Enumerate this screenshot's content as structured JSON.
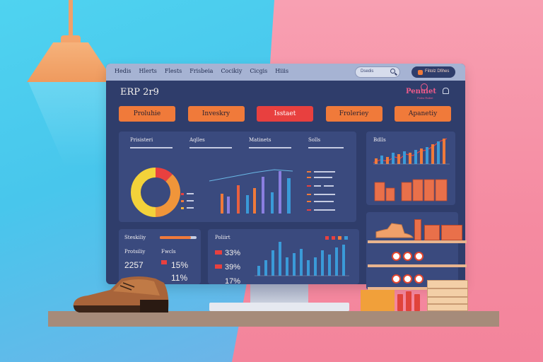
{
  "window": {
    "menu": [
      "Hedis",
      "Hlerts",
      "Flests",
      "Frisbeia",
      "Cocikiy",
      "Cicgis",
      "Hiiis"
    ],
    "search_placeholder": "Dsedis",
    "user_label": "Fiitolz Dfihes",
    "app_title": "ERP 2r9",
    "brand": "Penuiet",
    "brand_sub": "Poliro Ruiliet"
  },
  "tabs": [
    {
      "label": "Proluhie",
      "active": false
    },
    {
      "label": "Inveskry",
      "active": false
    },
    {
      "label": "Isstaet",
      "active": true
    },
    {
      "label": "Froleriey",
      "active": false
    },
    {
      "label": "Apanetiy",
      "active": false
    }
  ],
  "overview": {
    "headings": [
      "Prisisteri",
      "Aqlles",
      "Matinets",
      "Solls"
    ],
    "donut_legend_colors": [
      "#e8403f",
      "#f07a3a",
      "#f3b23a"
    ],
    "donut_segments": [
      {
        "color": "#e8403f",
        "value": 0.12
      },
      {
        "color": "#f0953a",
        "value": 0.38
      },
      {
        "color": "#f3d23a",
        "value": 0.5
      }
    ]
  },
  "sales_panel": {
    "title": "Bdlls"
  },
  "stats_panel": {
    "title": "Steskiliy",
    "progress_fill": 0.85,
    "col1_label": "Protsiliy",
    "col2_label": "Fwcls",
    "col1_value": "2257",
    "col2_value": "15%",
    "col2_value_b": "11%"
  },
  "report_panel": {
    "title": "Poliirt",
    "rows": [
      "33%",
      "39%",
      "17%"
    ]
  },
  "colors": {
    "accent_orange": "#f07a3a",
    "accent_red": "#e8403f",
    "screen_bg": "#2f3d6b",
    "panel_bg": "#3a4a7e",
    "bar_blue": "#3a9ad8",
    "bar_purple": "#8a7ee0"
  }
}
